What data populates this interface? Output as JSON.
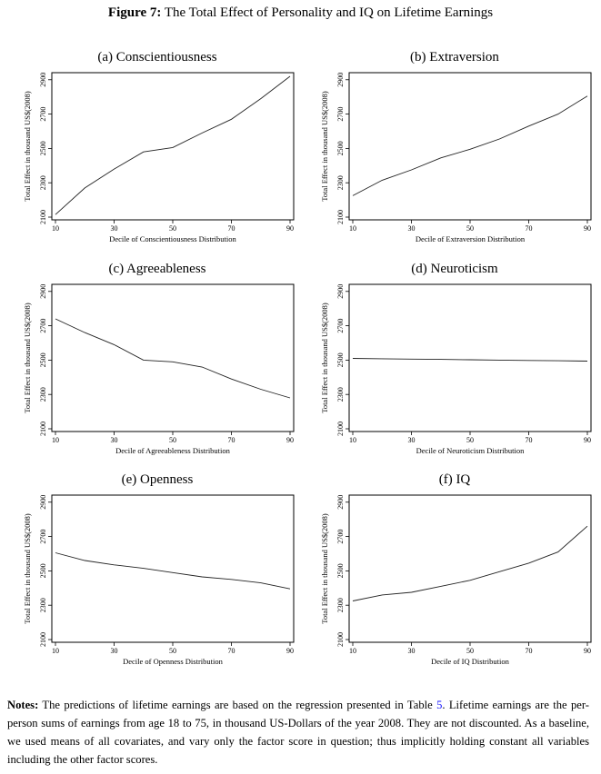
{
  "figure": {
    "label": "Figure 7:",
    "title": "The Total Effect of Personality and IQ on Lifetime Earnings"
  },
  "chart_data": [
    {
      "type": "line",
      "title": "(a) Conscientiousness",
      "xlabel": "Decile of Conscientiousness Distribution",
      "ylabel": "Total Effect in thousand US$(2008)",
      "x": [
        10,
        20,
        30,
        40,
        50,
        60,
        70,
        80,
        90
      ],
      "series": [
        {
          "values": [
            2115,
            2270,
            2380,
            2480,
            2505,
            2590,
            2670,
            2790,
            2920
          ]
        }
      ],
      "xticks": [
        "10",
        "30",
        "50",
        "70",
        "90"
      ],
      "yticks": [
        "2100",
        "2300",
        "2500",
        "2700",
        "2900"
      ],
      "xlim": [
        10,
        90
      ],
      "ylim": [
        2100,
        2920
      ]
    },
    {
      "type": "line",
      "title": "(b) Extraversion",
      "xlabel": "Decile of Extraversion Distribution",
      "ylabel": "Total Effect in thousand US$(2008)",
      "x": [
        10,
        20,
        30,
        40,
        50,
        60,
        70,
        80,
        90
      ],
      "series": [
        {
          "values": [
            2225,
            2315,
            2375,
            2445,
            2495,
            2555,
            2630,
            2700,
            2805
          ]
        }
      ],
      "xticks": [
        "10",
        "30",
        "50",
        "70",
        "90"
      ],
      "yticks": [
        "2100",
        "2300",
        "2500",
        "2700",
        "2900"
      ],
      "xlim": [
        10,
        90
      ],
      "ylim": [
        2100,
        2920
      ]
    },
    {
      "type": "line",
      "title": "(c) Agreeableness",
      "xlabel": "Decile of Agreeableness Distribution",
      "ylabel": "Total Effect in thousand US$(2008)",
      "x": [
        10,
        20,
        30,
        40,
        50,
        60,
        70,
        80,
        90
      ],
      "series": [
        {
          "values": [
            2740,
            2660,
            2590,
            2500,
            2490,
            2460,
            2390,
            2330,
            2280
          ]
        }
      ],
      "xticks": [
        "10",
        "30",
        "50",
        "70",
        "90"
      ],
      "yticks": [
        "2100",
        "2300",
        "2500",
        "2700",
        "2900"
      ],
      "xlim": [
        10,
        90
      ],
      "ylim": [
        2100,
        2920
      ]
    },
    {
      "type": "line",
      "title": "(d) Neuroticism",
      "xlabel": "Decile of Neuroticism Distribution",
      "ylabel": "Total Effect in thousand US$(2008)",
      "x": [
        10,
        20,
        30,
        40,
        50,
        60,
        70,
        80,
        90
      ],
      "series": [
        {
          "values": [
            2510,
            2508,
            2506,
            2504,
            2502,
            2500,
            2498,
            2496,
            2494
          ]
        }
      ],
      "xticks": [
        "10",
        "30",
        "50",
        "70",
        "90"
      ],
      "yticks": [
        "2100",
        "2300",
        "2500",
        "2700",
        "2900"
      ],
      "xlim": [
        10,
        90
      ],
      "ylim": [
        2100,
        2920
      ]
    },
    {
      "type": "line",
      "title": "(e) Openness",
      "xlabel": "Decile of Openness Distribution",
      "ylabel": "Total Effect in thousand US$(2008)",
      "x": [
        10,
        20,
        30,
        40,
        50,
        60,
        70,
        80,
        90
      ],
      "series": [
        {
          "values": [
            2605,
            2560,
            2535,
            2515,
            2490,
            2465,
            2450,
            2430,
            2395
          ]
        }
      ],
      "xticks": [
        "10",
        "30",
        "50",
        "70",
        "90"
      ],
      "yticks": [
        "2100",
        "2300",
        "2500",
        "2700",
        "2900"
      ],
      "xlim": [
        10,
        90
      ],
      "ylim": [
        2100,
        2920
      ]
    },
    {
      "type": "line",
      "title": "(f) IQ",
      "xlabel": "Decile of IQ Distribution",
      "ylabel": "Total Effect in thousand US$(2008)",
      "x": [
        10,
        20,
        30,
        40,
        50,
        60,
        70,
        80,
        90
      ],
      "series": [
        {
          "values": [
            2325,
            2360,
            2375,
            2410,
            2445,
            2495,
            2545,
            2610,
            2760
          ]
        }
      ],
      "xticks": [
        "10",
        "30",
        "50",
        "70",
        "90"
      ],
      "yticks": [
        "2100",
        "2300",
        "2500",
        "2700",
        "2900"
      ],
      "xlim": [
        10,
        90
      ],
      "ylim": [
        2100,
        2920
      ]
    }
  ],
  "notes": {
    "label": "Notes:",
    "text_before_ref": "The predictions of lifetime earnings are based on the regression presented in Table",
    "table_ref": "5",
    "text_after_ref": ". Lifetime earnings are the per-person sums of earnings from age 18 to 75, in thousand US-Dollars of the year 2008. They are not discounted. As a baseline, we used means of all covariates, and vary only the factor score in question; thus implicitly holding constant all variables including the other factor scores."
  }
}
